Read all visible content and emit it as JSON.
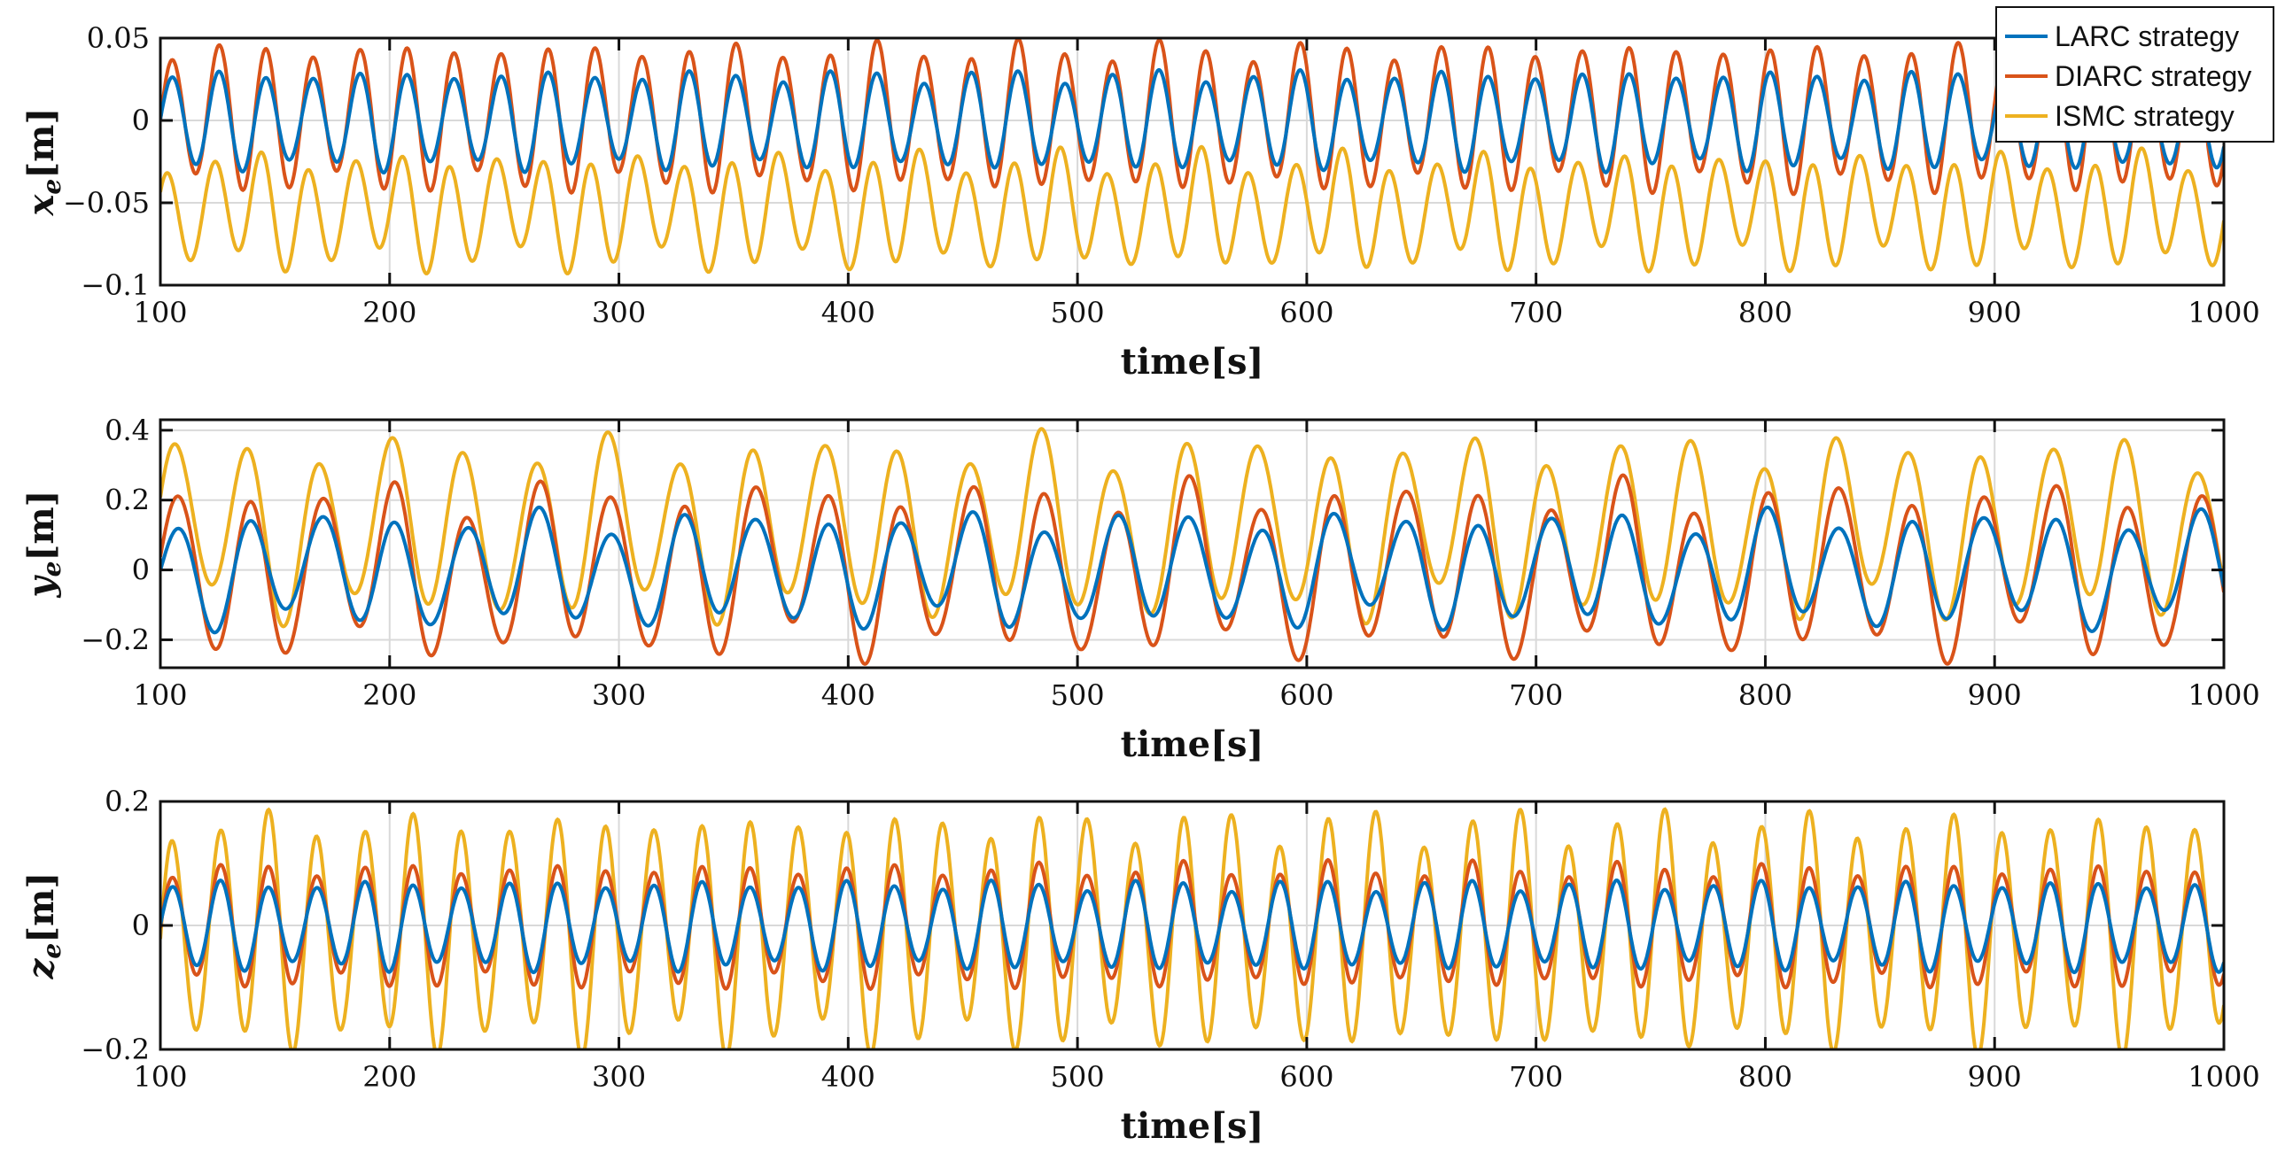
{
  "chart_data": [
    {
      "type": "line",
      "ylabel_var": "x",
      "ylabel_sub": "e",
      "ylabel_unit": "[m]",
      "xlabel": "time[s]",
      "xlim": [
        100,
        1000
      ],
      "ylim": [
        -0.1,
        0.05
      ],
      "xticks": [
        100,
        200,
        300,
        400,
        500,
        600,
        700,
        800,
        900,
        1000
      ],
      "xtick_labels": [
        "100",
        "200",
        "300",
        "400",
        "500",
        "600",
        "700",
        "800",
        "900",
        "1000"
      ],
      "yticks": [
        -0.1,
        -0.05,
        0,
        0.05
      ],
      "ytick_labels": [
        "−0.1",
        "−0.05",
        "0",
        "0.05"
      ],
      "grid": true,
      "period": 20.5,
      "series": [
        {
          "name": "ISMC strategy",
          "color": "#EDB120",
          "center": -0.055,
          "amp": 0.03,
          "phase": 0.6,
          "mod": 0.006
        },
        {
          "name": "DIARC strategy",
          "color": "#D95319",
          "center": 0.002,
          "amp": 0.04,
          "phase": 0.0,
          "mod": 0.003
        },
        {
          "name": "LARC strategy",
          "color": "#0072BD",
          "center": 0.0,
          "amp": 0.027,
          "phase": 0.0,
          "mod": 0.0015
        }
      ]
    },
    {
      "type": "line",
      "ylabel_var": "y",
      "ylabel_sub": "e",
      "ylabel_unit": "[m]",
      "xlabel": "time[s]",
      "xlim": [
        100,
        1000
      ],
      "ylim": [
        -0.28,
        0.43
      ],
      "xticks": [
        100,
        200,
        300,
        400,
        500,
        600,
        700,
        800,
        900,
        1000
      ],
      "xtick_labels": [
        "100",
        "200",
        "300",
        "400",
        "500",
        "600",
        "700",
        "800",
        "900",
        "1000"
      ],
      "yticks": [
        -0.2,
        0,
        0.2,
        0.4
      ],
      "ytick_labels": [
        "−0.2",
        "0",
        "0.2",
        "0.4"
      ],
      "grid": true,
      "period": 31.5,
      "series": [
        {
          "name": "ISMC strategy",
          "color": "#EDB120",
          "center": 0.12,
          "amp": 0.22,
          "phase": 0.3,
          "mod": 0.04
        },
        {
          "name": "DIARC strategy",
          "color": "#D95319",
          "center": 0.0,
          "amp": 0.21,
          "phase": 0.0,
          "mod": 0.04
        },
        {
          "name": "LARC strategy",
          "color": "#0072BD",
          "center": 0.0,
          "amp": 0.14,
          "phase": 0.0,
          "mod": 0.025
        }
      ]
    },
    {
      "type": "line",
      "ylabel_var": "z",
      "ylabel_sub": "e",
      "ylabel_unit": "[m]",
      "xlabel": "time[s]",
      "xlim": [
        100,
        1000
      ],
      "ylim": [
        -0.2,
        0.2
      ],
      "xticks": [
        100,
        200,
        300,
        400,
        500,
        600,
        700,
        800,
        900,
        1000
      ],
      "xtick_labels": [
        "100",
        "200",
        "300",
        "400",
        "500",
        "600",
        "700",
        "800",
        "900",
        "1000"
      ],
      "yticks": [
        -0.2,
        0,
        0.2
      ],
      "ytick_labels": [
        "−0.2",
        "0",
        "0.2"
      ],
      "grid": true,
      "period": 21.0,
      "series": [
        {
          "name": "ISMC strategy",
          "color": "#EDB120",
          "center": -0.01,
          "amp": 0.17,
          "phase": 0.0,
          "mod": 0.015
        },
        {
          "name": "DIARC strategy",
          "color": "#D95319",
          "center": 0.0,
          "amp": 0.09,
          "phase": 0.0,
          "mod": 0.005
        },
        {
          "name": "LARC strategy",
          "color": "#0072BD",
          "center": 0.0,
          "amp": 0.065,
          "phase": 0.0,
          "mod": 0.003
        }
      ]
    }
  ],
  "legend": {
    "position": "top-right",
    "items": [
      {
        "label": "LARC strategy",
        "color": "#0072BD"
      },
      {
        "label": "DIARC strategy",
        "color": "#D95319"
      },
      {
        "label": "ISMC strategy",
        "color": "#EDB120"
      }
    ]
  }
}
